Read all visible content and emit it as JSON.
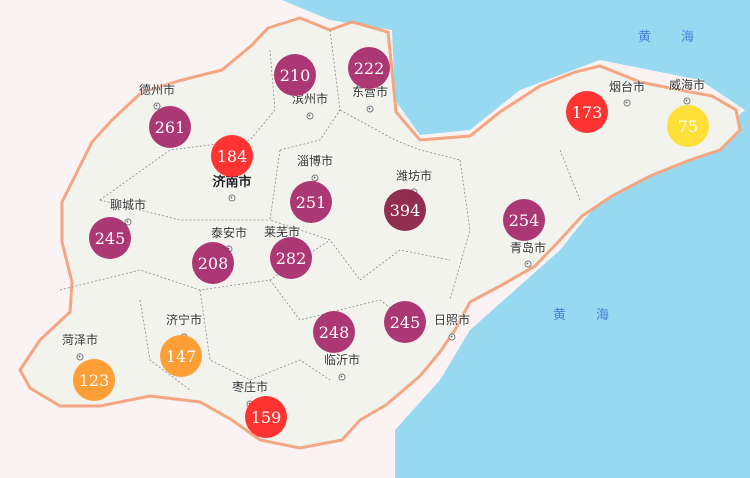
{
  "sea_labels": [
    {
      "text_a": "黄",
      "text_b": "海"
    },
    {
      "text_a": "黄",
      "text_b": "海"
    }
  ],
  "colors": {
    "sea": "#97d9f1",
    "land": "#f3f3ee",
    "outside_land": "#fbf3f3",
    "border": "#f4a683",
    "level_good": "#ffe02e",
    "level_moderate": "#ff9a2e",
    "level_unhealthy": "#ff2a2a",
    "level_very_unhealthy": "#a82f6e",
    "level_hazardous": "#8c2346"
  },
  "cities": [
    {
      "name": "德州市",
      "aqi": "261",
      "level": "level_very_unhealthy"
    },
    {
      "name": "滨州市",
      "aqi": "210",
      "level": "level_very_unhealthy"
    },
    {
      "name": "东营市",
      "aqi": "222",
      "level": "level_very_unhealthy"
    },
    {
      "name": "烟台市",
      "aqi": "173",
      "level": "level_unhealthy"
    },
    {
      "name": "威海市",
      "aqi": "75",
      "level": "level_good"
    },
    {
      "name": "济南市",
      "aqi": "184",
      "level": "level_unhealthy",
      "capital": true
    },
    {
      "name": "淄博市",
      "aqi": "251",
      "level": "level_very_unhealthy"
    },
    {
      "name": "潍坊市",
      "aqi": "394",
      "level": "level_hazardous"
    },
    {
      "name": "聊城市",
      "aqi": "245",
      "level": "level_very_unhealthy"
    },
    {
      "name": "泰安市",
      "aqi": "208",
      "level": "level_very_unhealthy"
    },
    {
      "name": "莱芜市",
      "aqi": "282",
      "level": "level_very_unhealthy"
    },
    {
      "name": "青岛市",
      "aqi": "254",
      "level": "level_very_unhealthy"
    },
    {
      "name": "日照市",
      "aqi": "245",
      "level": "level_very_unhealthy"
    },
    {
      "name": "临沂市",
      "aqi": "248",
      "level": "level_very_unhealthy"
    },
    {
      "name": "济宁市",
      "aqi": "147",
      "level": "level_moderate"
    },
    {
      "name": "菏泽市",
      "aqi": "123",
      "level": "level_moderate"
    },
    {
      "name": "枣庄市",
      "aqi": "159",
      "level": "level_unhealthy"
    }
  ]
}
